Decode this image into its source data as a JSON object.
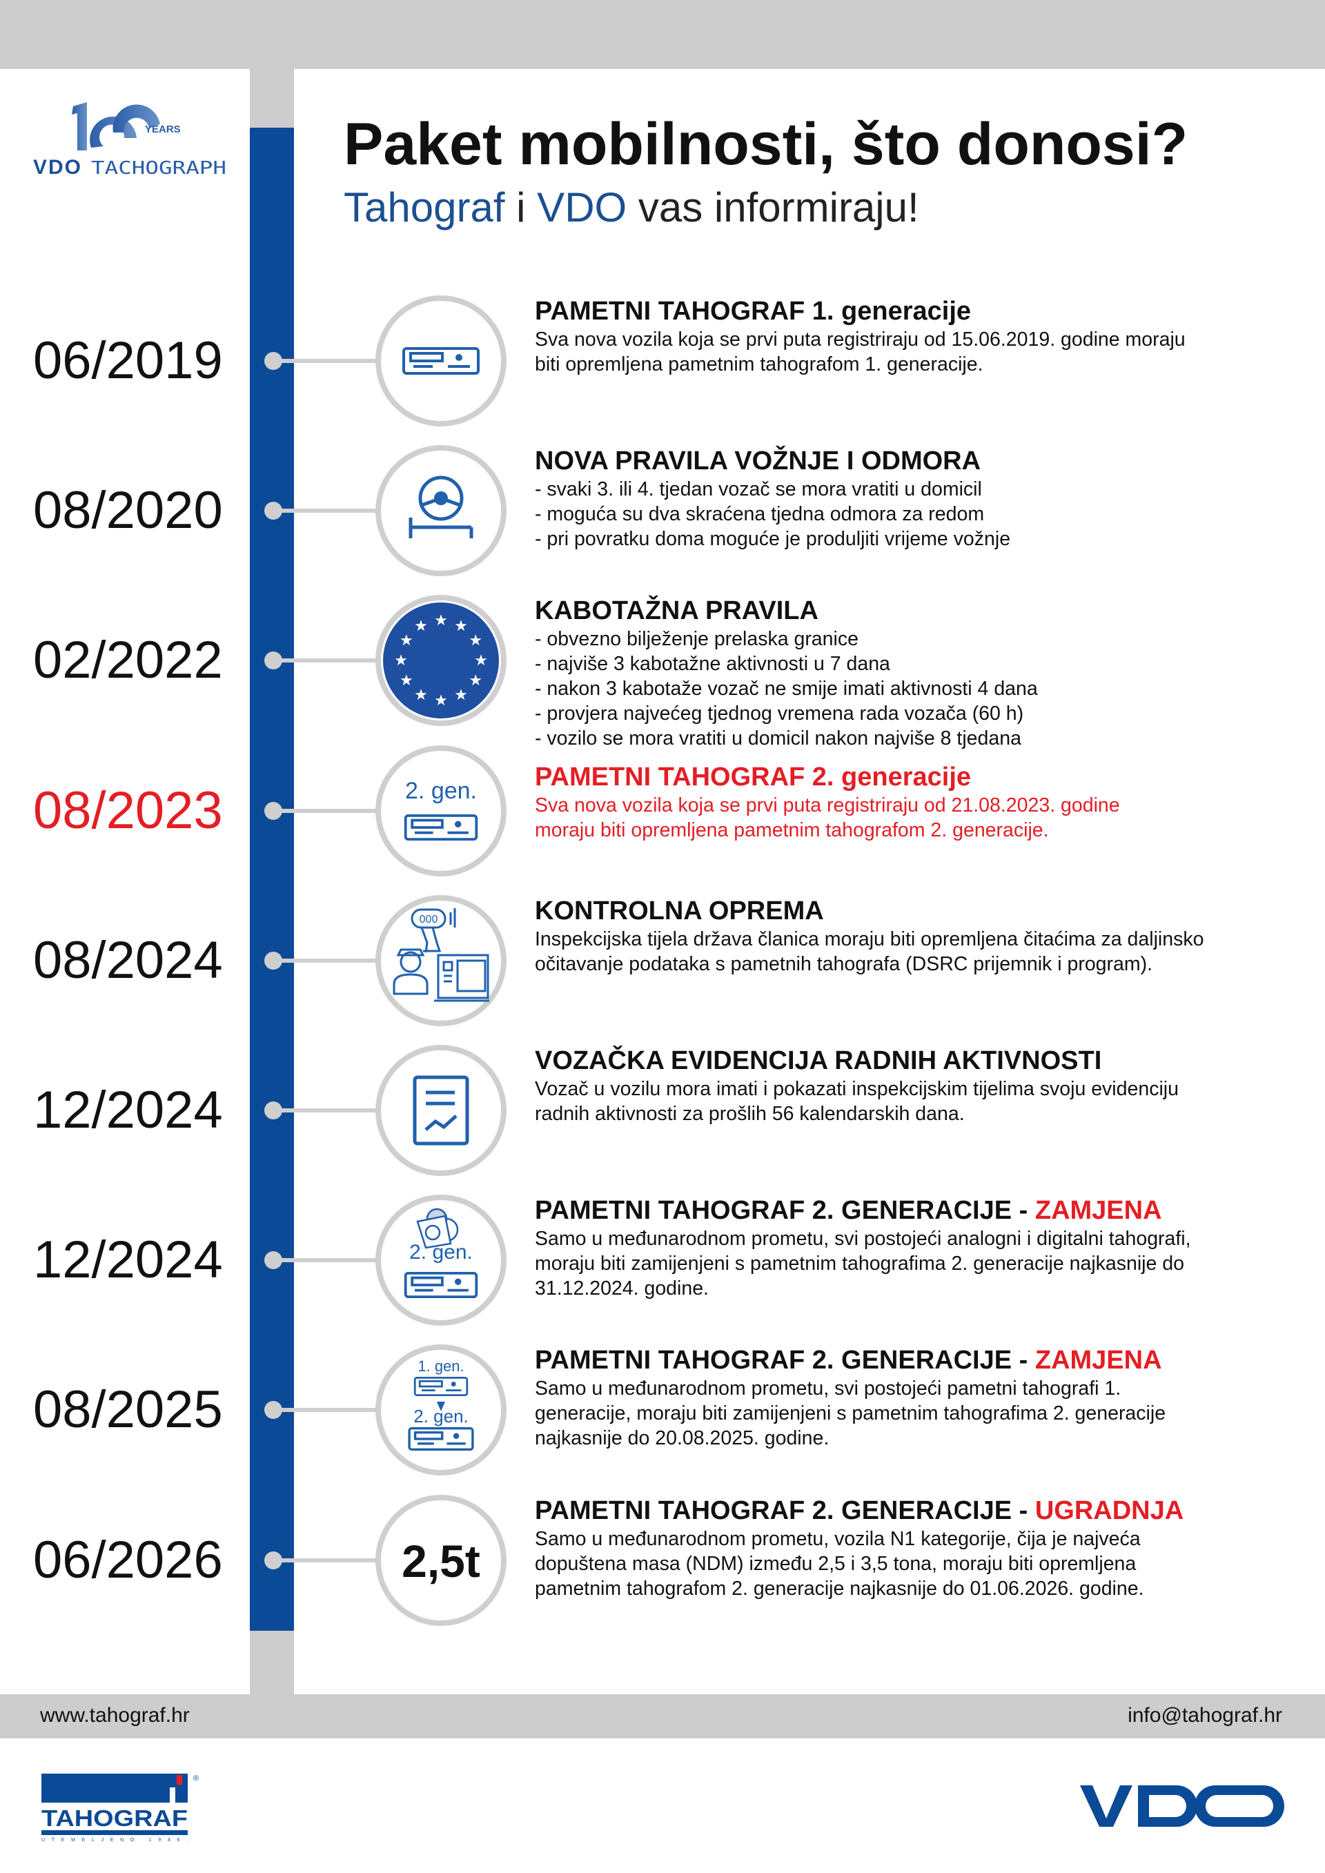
{
  "header": {
    "title": "Paket mobilnosti, što donosi?",
    "subtitle_parts": [
      "Tahograf",
      " i ",
      "VDO",
      " vas informiraju!"
    ],
    "logo_text": {
      "number": "100",
      "years": "YEARS",
      "brand": "VDO",
      "product": "TACHOGRAPH"
    }
  },
  "colors": {
    "brand_blue": "#0b4a97",
    "icon_blue": "#2160ad",
    "accent_red": "#e31e24",
    "band_gray": "#cdcdcd"
  },
  "timeline": [
    {
      "date": "06/2019",
      "icon": "tachograph-icon",
      "heading": "PAMETNI TAHOGRAF 1. generacije",
      "suffix": "",
      "lines": [
        "Sva nova vozila koja se prvi puta registriraju od 15.06.2019. godine moraju",
        "biti opremljena pametnim tahografom 1. generacije."
      ]
    },
    {
      "date": "08/2020",
      "icon": "steering-wheel-bed-icon",
      "heading": "NOVA PRAVILA VOŽNJE I ODMORA",
      "suffix": "",
      "lines": [
        "- svaki 3. ili 4. tjedan vozač se mora vratiti u domicil",
        "- moguća su dva skraćena tjedna odmora za redom",
        "- pri povratku doma moguće je produljiti vrijeme vožnje"
      ]
    },
    {
      "date": "02/2022",
      "icon": "eu-flag-icon",
      "heading": "KABOTAŽNA PRAVILA",
      "suffix": "",
      "lines": [
        "- obvezno bilježenje prelaska granice",
        "- najviše 3 kabotažne aktivnosti u 7 dana",
        "- nakon 3 kabotaže vozač ne smije imati aktivnosti 4 dana",
        "- provjera najvećeg tjednog vremena rada vozača (60 h)",
        "- vozilo se mora vratiti u domicil nakon najviše 8 tjedana"
      ]
    },
    {
      "date": "08/2023",
      "highlight": true,
      "icon": "tachograph-2gen-icon",
      "icon_label": "2. gen.",
      "heading": "PAMETNI TAHOGRAF 2. generacije",
      "suffix": "",
      "lines": [
        "Sva nova vozila koja se prvi puta registriraju od 21.08.2023. godine",
        "moraju biti opremljena pametnim tahografom 2. generacije."
      ]
    },
    {
      "date": "08/2024",
      "icon": "control-equipment-icon",
      "icon_label": "000",
      "heading": "KONTROLNA OPREMA",
      "suffix": "",
      "lines": [
        "Inspekcijska tijela država članica moraju biti opremljena čitaćima za daljinsko",
        "očitavanje podataka s pametnih tahografa (DSRC prijemnik i program)."
      ]
    },
    {
      "date": "12/2024",
      "icon": "document-chart-icon",
      "heading": "VOZAČKA EVIDENCIJA RADNIH AKTIVNOSTI",
      "suffix": "",
      "lines": [
        "Vozač u vozilu mora imati i pokazati inspekcijskim tijelima svoju evidenciju",
        "radnih aktivnosti za prošlih 56 kalendarskih dana."
      ]
    },
    {
      "date": "12/2024",
      "icon": "analog-to-2gen-icon",
      "icon_label": "2. gen.",
      "heading": "PAMETNI TAHOGRAF 2. GENERACIJE - ",
      "suffix": "ZAMJENA",
      "lines": [
        "Samo u međunarodnom prometu, svi postojeći analogni i digitalni tahografi,",
        "moraju biti zamijenjeni s pametnim tahografima 2. generacije najkasnije do",
        "31.12.2024. godine."
      ]
    },
    {
      "date": "08/2025",
      "icon": "1gen-to-2gen-icon",
      "icon_label": "2. gen.",
      "icon_label_top": "1. gen.",
      "heading": "PAMETNI TAHOGRAF 2. GENERACIJE - ",
      "suffix": "ZAMJENA",
      "lines": [
        "Samo u međunarodnom prometu, svi postojeći pametni tahografi 1.",
        "generacije, moraju biti zamijenjeni s pametnim tahografima 2. generacije",
        "najkasnije do 20.08.2025. godine."
      ]
    },
    {
      "date": "06/2026",
      "icon": "weight-2-5t-icon",
      "icon_label": "2,5t",
      "heading": "PAMETNI TAHOGRAF 2. GENERACIJE - ",
      "suffix": "UGRADNJA",
      "lines": [
        "Samo u međunarodnom prometu, vozila N1 kategorije, čija je najveća",
        "dopuštena masa (NDM) između 2,5 i 3,5 tona, moraju biti opremljena",
        "pametnim tahografom 2. generacije najkasnije do 01.06.2026. godine."
      ]
    }
  ],
  "footer": {
    "website": "www.tahograf.hr",
    "email": "info@tahograf.hr",
    "tahograf_logo": {
      "name": "TAHOGRAF",
      "tagline": "UTEMELJENO 1946."
    },
    "vdo_logo": "VDO"
  }
}
